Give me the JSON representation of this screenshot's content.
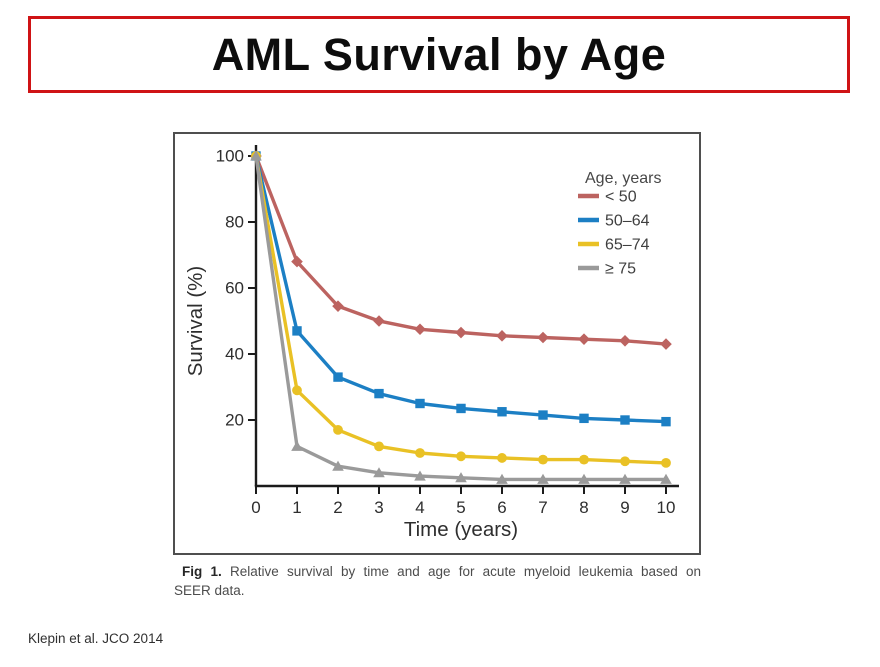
{
  "slide": {
    "title": "AML Survival by Age",
    "attribution": "Klepin et al. JCO 2014"
  },
  "figure": {
    "caption_fig_label": "Fig 1.",
    "caption_line1_rest": "Relative survival by time and age for acute myeloid leukemia based on",
    "caption_line2": "SEER data."
  },
  "colors": {
    "title_border": "#cf1315",
    "figure_border": "#4f4f4f",
    "axis": "#1b1b1b",
    "tick_text": "#2e2e2e",
    "legend_text": "#3f3f3f"
  },
  "chart_data": {
    "type": "line",
    "title": "",
    "xlabel": "Time (years)",
    "ylabel": "Survival (%)",
    "x": [
      0,
      1,
      2,
      3,
      4,
      5,
      6,
      7,
      8,
      9,
      10
    ],
    "xlim": [
      0,
      10
    ],
    "ylim": [
      0,
      100
    ],
    "xticks": [
      0,
      1,
      2,
      3,
      4,
      5,
      6,
      7,
      8,
      9,
      10
    ],
    "yticks": [
      20,
      40,
      60,
      80,
      100
    ],
    "grid": false,
    "legend_title": "Age, years",
    "legend_position": "top-right",
    "series": [
      {
        "name": "< 50",
        "color": "#bc6360",
        "marker": "diamond",
        "values": [
          100,
          68,
          54.5,
          50,
          47.5,
          46.5,
          45.5,
          45,
          44.5,
          44,
          43
        ]
      },
      {
        "name": "50–64",
        "color": "#1c7fc4",
        "marker": "square",
        "values": [
          100,
          47,
          33,
          28,
          25,
          23.5,
          22.5,
          21.5,
          20.5,
          20,
          19.5
        ]
      },
      {
        "name": "65–74",
        "color": "#e9c125",
        "marker": "circle",
        "values": [
          100,
          29,
          17,
          12,
          10,
          9,
          8.5,
          8,
          8,
          7.5,
          7
        ]
      },
      {
        "name": "≥ 75",
        "color": "#9a9a9a",
        "marker": "triangle",
        "values": [
          100,
          12,
          6,
          4,
          3,
          2.5,
          2,
          2,
          2,
          2,
          2
        ]
      }
    ]
  }
}
